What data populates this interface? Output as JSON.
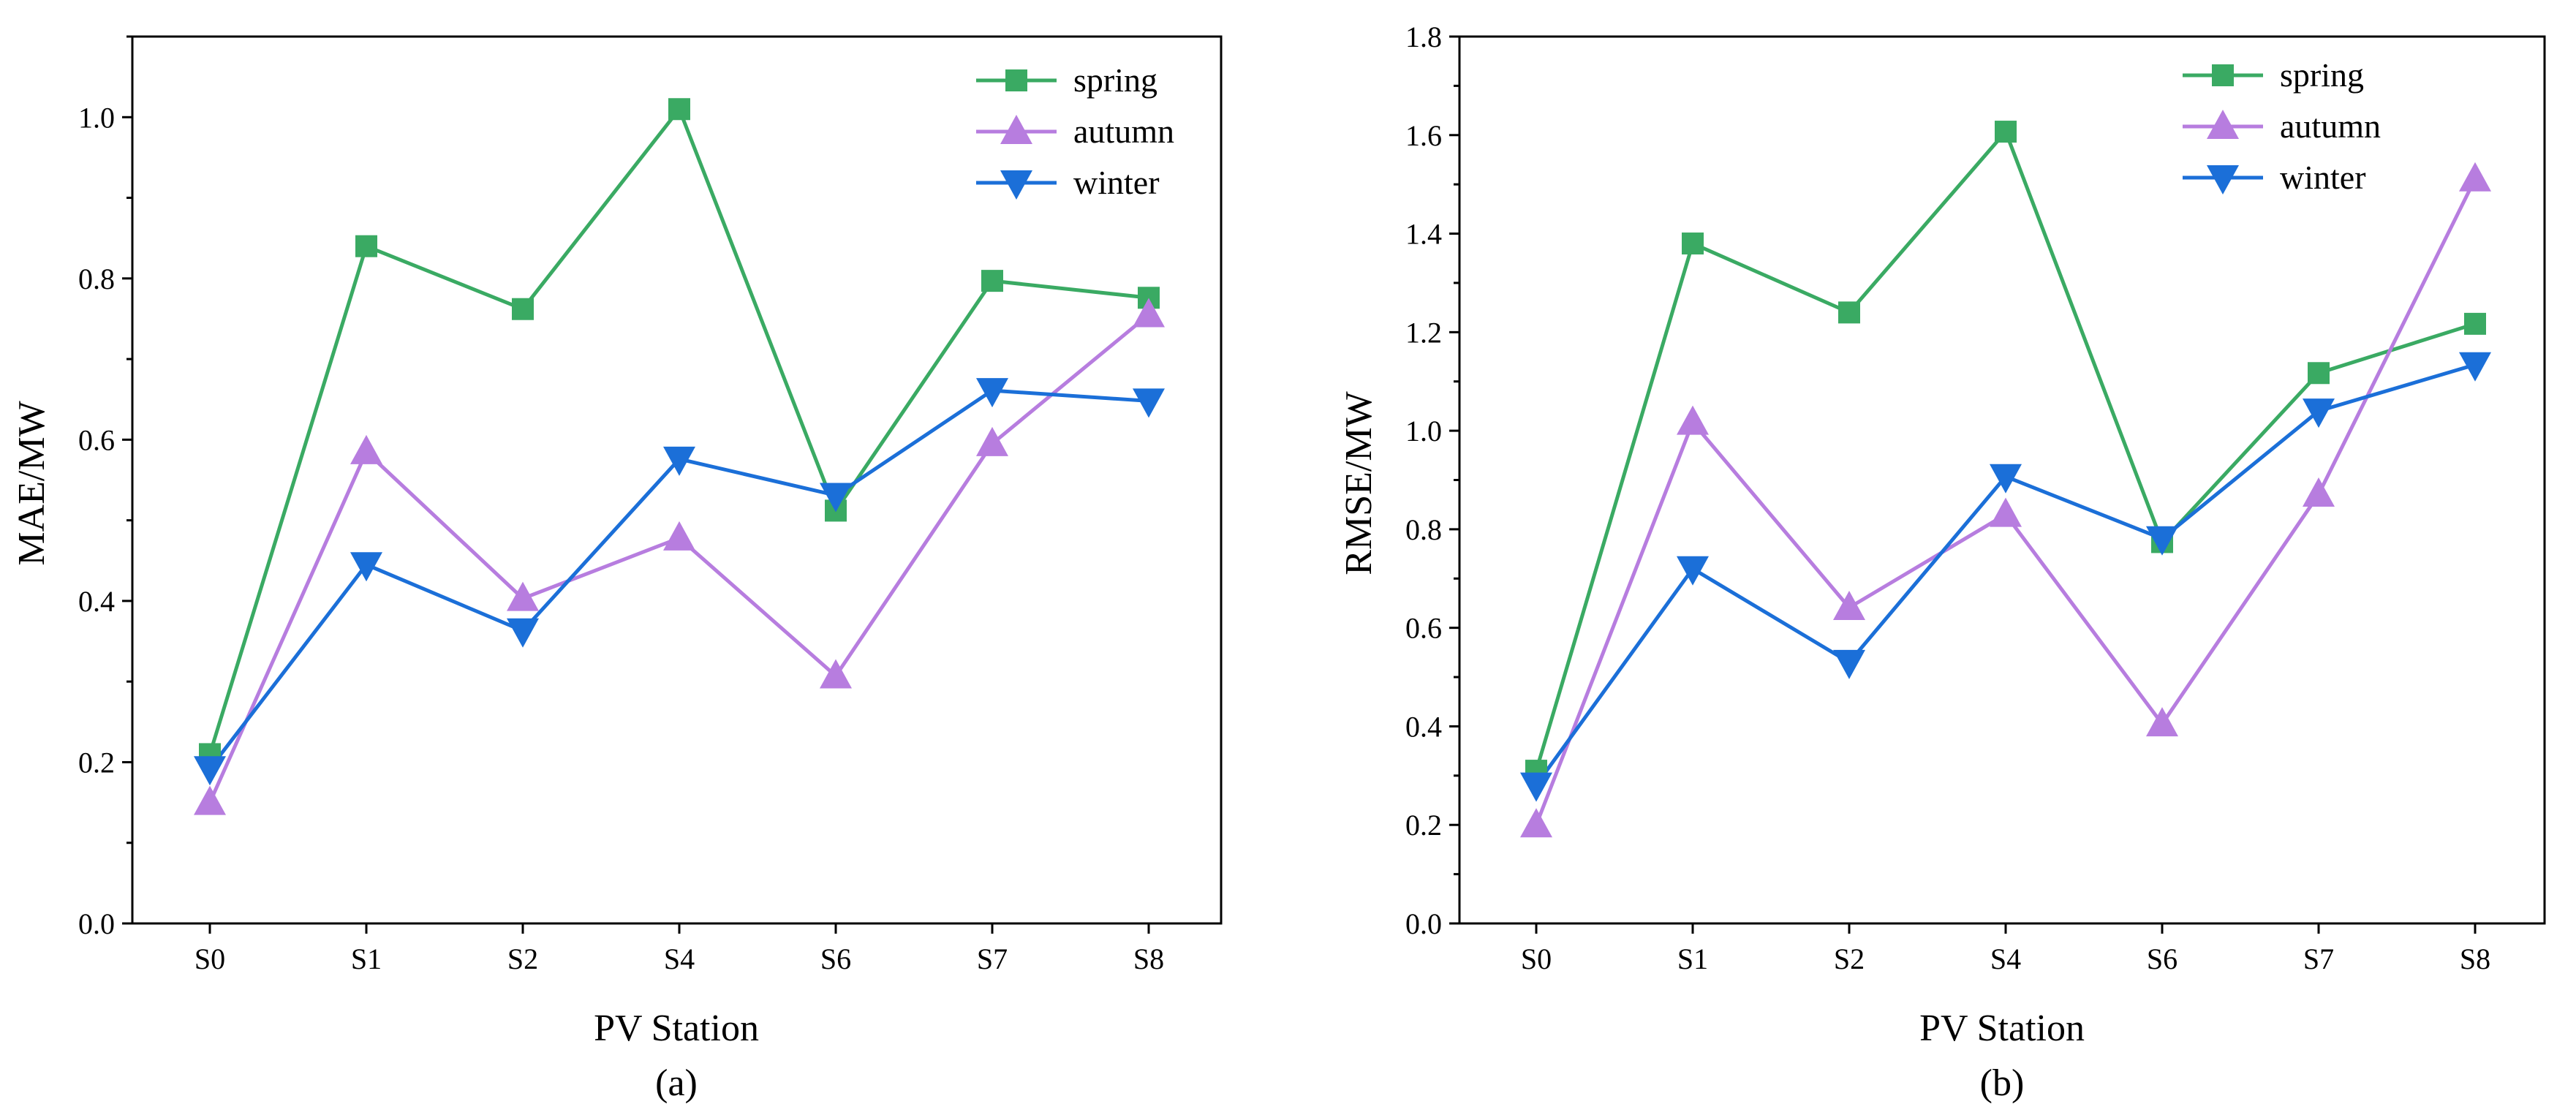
{
  "chart_data": [
    {
      "type": "line",
      "panel_label": "(a)",
      "xlabel": "PV Station",
      "ylabel": "MAE/MW",
      "categories": [
        "S0",
        "S1",
        "S2",
        "S4",
        "S6",
        "S7",
        "S8"
      ],
      "ylim": [
        0,
        1.1
      ],
      "yticks": [
        0.0,
        0.2,
        0.4,
        0.6,
        0.8,
        1.0
      ],
      "ytick_labels": [
        "0.0",
        "0.2",
        "0.4",
        "0.6",
        "0.8",
        "1.0"
      ],
      "legend_position": "top-right",
      "series": [
        {
          "name": "spring",
          "color": "#3aaa63",
          "marker": "square",
          "values": [
            0.21,
            0.84,
            0.762,
            1.01,
            0.512,
            0.797,
            0.776
          ]
        },
        {
          "name": "autumn",
          "color": "#b77ddf",
          "marker": "triangle-up",
          "values": [
            0.15,
            0.585,
            0.403,
            0.478,
            0.307,
            0.595,
            0.755
          ]
        },
        {
          "name": "winter",
          "color": "#1b6fd8",
          "marker": "triangle-down",
          "values": [
            0.192,
            0.445,
            0.363,
            0.576,
            0.531,
            0.661,
            0.648
          ]
        }
      ]
    },
    {
      "type": "line",
      "panel_label": "(b)",
      "xlabel": "PV Station",
      "ylabel": "RMSE/MW",
      "categories": [
        "S0",
        "S1",
        "S2",
        "S4",
        "S6",
        "S7",
        "S8"
      ],
      "ylim": [
        0,
        1.8
      ],
      "yticks": [
        0.0,
        0.2,
        0.4,
        0.6,
        0.8,
        1.0,
        1.2,
        1.4,
        1.6,
        1.8
      ],
      "ytick_labels": [
        "0.0",
        "0.2",
        "0.4",
        "0.6",
        "0.8",
        "1.0",
        "1.2",
        "1.4",
        "1.6",
        "1.8"
      ],
      "legend_position": "top-right",
      "series": [
        {
          "name": "spring",
          "color": "#3aaa63",
          "marker": "square",
          "values": [
            0.31,
            1.38,
            1.24,
            1.607,
            0.774,
            1.117,
            1.217
          ]
        },
        {
          "name": "autumn",
          "color": "#b77ddf",
          "marker": "triangle-up",
          "values": [
            0.2,
            1.017,
            0.641,
            0.83,
            0.405,
            0.871,
            1.511
          ]
        },
        {
          "name": "winter",
          "color": "#1b6fd8",
          "marker": "triangle-down",
          "values": [
            0.281,
            0.72,
            0.53,
            0.907,
            0.781,
            1.04,
            1.134
          ]
        }
      ]
    }
  ]
}
